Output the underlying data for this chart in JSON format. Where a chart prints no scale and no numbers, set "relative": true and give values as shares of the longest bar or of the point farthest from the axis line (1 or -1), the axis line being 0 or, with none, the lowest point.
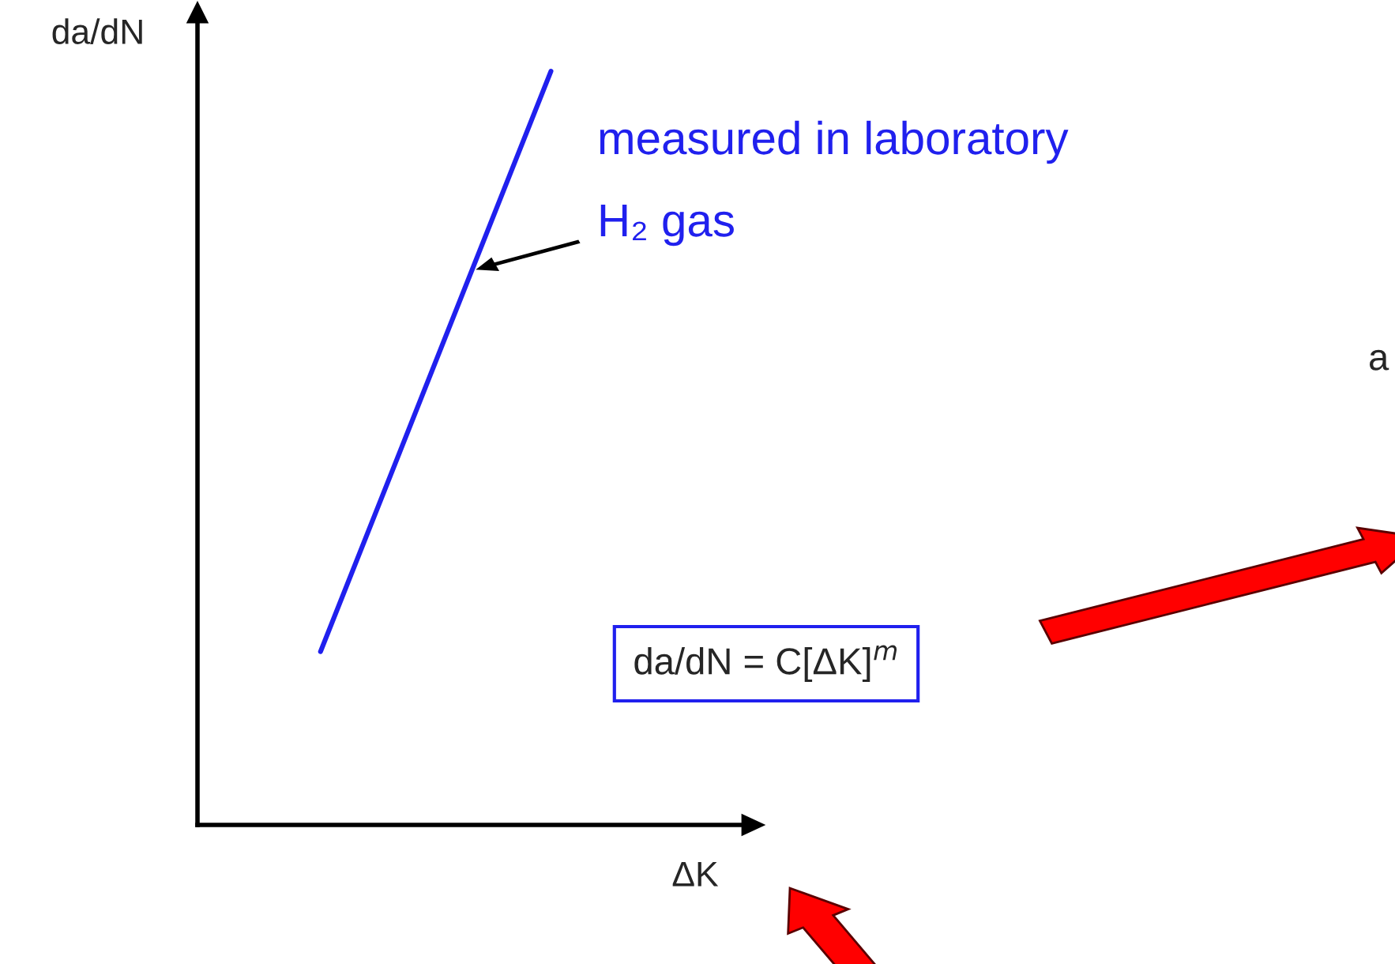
{
  "chart_data": {
    "type": "line",
    "relative": true,
    "xlabel": "ΔK",
    "ylabel": "da/dN",
    "categories": [
      null,
      null
    ],
    "series": [
      {
        "color": "#2020ee",
        "values": [
          0.23,
          1
        ]
      }
    ],
    "annotations": [
      "measured in laboratory",
      "H₂ gas",
      "da/dN = C[ΔK]$^{m}$",
      "a"
    ],
    "legend": false,
    "grid": false,
    "marker": "none",
    "line_style": "solid"
  }
}
